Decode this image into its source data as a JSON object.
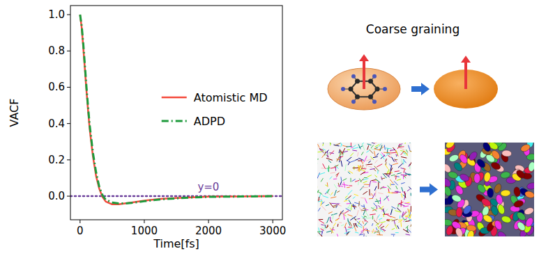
{
  "chart_data": {
    "type": "line",
    "x_label": "Time[fs]",
    "y_label": "VACF",
    "x": [
      0,
      25,
      50,
      75,
      100,
      125,
      150,
      200,
      250,
      300,
      350,
      400,
      500,
      600,
      700,
      800,
      1000,
      1250,
      1500,
      1750,
      2000,
      2500,
      3000
    ],
    "series": [
      {
        "name": "Atomistic MD",
        "color": "#f4493b",
        "line_style": "solid",
        "values": [
          1.0,
          0.93,
          0.82,
          0.7,
          0.58,
          0.47,
          0.37,
          0.22,
          0.11,
          0.04,
          -0.005,
          -0.03,
          -0.045,
          -0.045,
          -0.04,
          -0.035,
          -0.025,
          -0.015,
          -0.01,
          -0.006,
          -0.003,
          -0.002,
          0.0
        ]
      },
      {
        "name": "ADPD",
        "color": "#1e9a3c",
        "line_style": "dashdot",
        "values": [
          1.0,
          0.94,
          0.84,
          0.72,
          0.6,
          0.49,
          0.39,
          0.24,
          0.13,
          0.05,
          0.005,
          -0.02,
          -0.035,
          -0.04,
          -0.04,
          -0.037,
          -0.028,
          -0.018,
          -0.012,
          -0.007,
          -0.004,
          -0.002,
          0.0
        ]
      }
    ],
    "xlim": [
      -150,
      3150
    ],
    "ylim": [
      -0.13,
      1.05
    ],
    "xticks": [
      0,
      1000,
      2000,
      3000
    ],
    "yticks": [
      {
        "value": 0,
        "label": "0.0"
      },
      {
        "value": 0.2,
        "label": "0.2"
      },
      {
        "value": 0.4,
        "label": "0.4"
      },
      {
        "value": 0.6,
        "label": "0.6"
      },
      {
        "value": 0.8,
        "label": "0.8"
      },
      {
        "value": 1.0,
        "label": "1.0"
      }
    ],
    "grid": false,
    "legend": "center right",
    "annotations": [
      {
        "text": "y=0",
        "y": 0,
        "color": "#6a3d9a"
      }
    ]
  },
  "illustration": {
    "title": "Coarse graining"
  }
}
